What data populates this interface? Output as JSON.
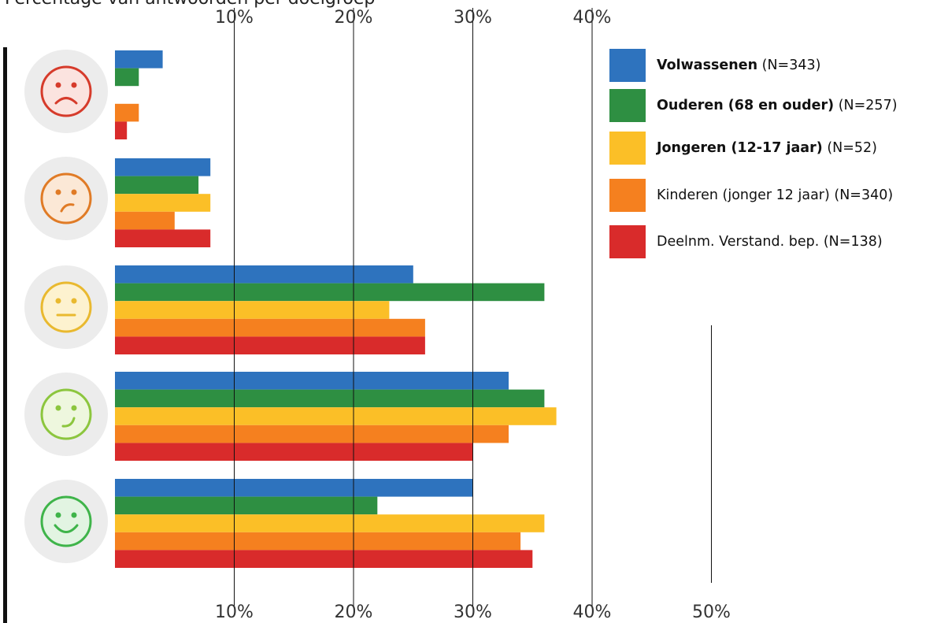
{
  "chart_data": {
    "type": "bar",
    "orientation": "horizontal",
    "title": "Percentage van antwoorden per doelgroep",
    "xlabel": "",
    "ylabel": "",
    "xlim": [
      0,
      50
    ],
    "tick_labels": [
      "10%",
      "20%",
      "30%",
      "40%",
      "50%"
    ],
    "top_tick_labels": [
      "10%",
      "20%",
      "30%",
      "40%"
    ],
    "categories": [
      "zeer ontevreden",
      "ontevreden",
      "neutraal",
      "tevreden",
      "zeer tevreden"
    ],
    "category_icons": [
      "very-sad-face-icon",
      "sad-face-icon",
      "neutral-face-icon",
      "happy-face-icon",
      "very-happy-face-icon"
    ],
    "series": [
      {
        "name": "Volwassenen",
        "n": "(N=343)",
        "bold": true,
        "color": "#2e73be",
        "values": [
          4,
          8,
          25,
          33,
          30
        ]
      },
      {
        "name": "Ouderen (68 en ouder)",
        "n": "(N=257)",
        "bold": true,
        "color": "#2e8f42",
        "values": [
          2,
          7,
          36,
          36,
          22
        ]
      },
      {
        "name": "Jongeren (12-17 jaar)",
        "n": "(N=52)",
        "bold": true,
        "color": "#fbbf27",
        "values": [
          0,
          8,
          23,
          37,
          36
        ]
      },
      {
        "name": "Kinderen (jonger 12 jaar)",
        "n": "(N=340)",
        "bold": false,
        "color": "#f5801f",
        "values": [
          2,
          5,
          26,
          33,
          34
        ]
      },
      {
        "name": "Deelnm. Verstand. bep.",
        "n": "(N=138)",
        "bold": false,
        "color": "#d92b2b",
        "values": [
          1,
          8,
          26,
          30,
          35
        ]
      }
    ],
    "grid": true,
    "legend_position": "top-right"
  }
}
